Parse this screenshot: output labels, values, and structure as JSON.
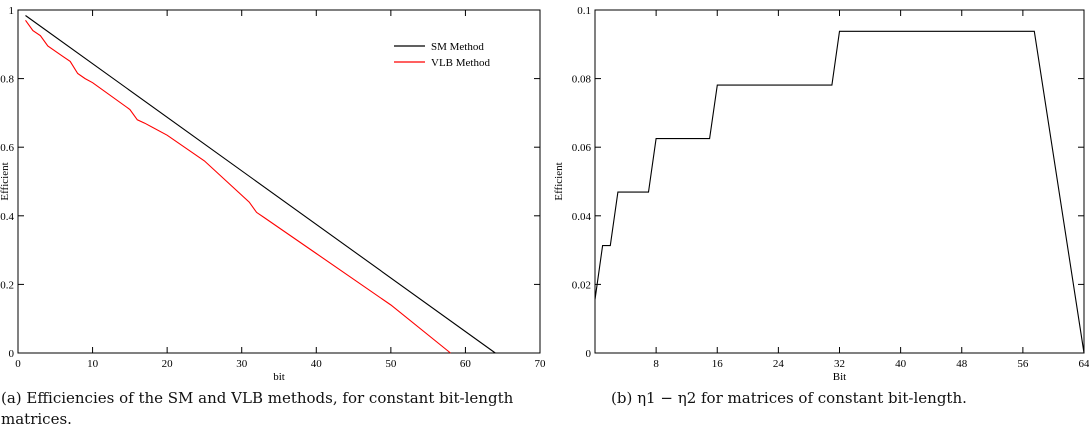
{
  "chart_data": [
    {
      "type": "line",
      "xlabel": "bit",
      "ylabel": "Efficient",
      "xlim": [
        0,
        70
      ],
      "ylim": [
        0,
        1
      ],
      "xticks": [
        0,
        10,
        20,
        30,
        40,
        50,
        60,
        70
      ],
      "yticks": [
        0,
        0.2,
        0.4,
        0.6,
        0.8,
        1
      ],
      "ytick_labels": [
        "0",
        "0.2",
        "0.4",
        "0.6",
        "0.8",
        "1"
      ],
      "grid": false,
      "legend_position": "top-right",
      "series": [
        {
          "name": "SM Method",
          "color": "#000000",
          "x": [
            1,
            64
          ],
          "y": [
            0.984,
            0
          ]
        },
        {
          "name": "VLB Method",
          "color": "#ff0000",
          "x": [
            1,
            2,
            3,
            4,
            5,
            6,
            7,
            8,
            9,
            10,
            15,
            16,
            17,
            20,
            25,
            31,
            32,
            33,
            40,
            50,
            58
          ],
          "y": [
            0.97,
            0.94,
            0.925,
            0.895,
            0.88,
            0.865,
            0.85,
            0.815,
            0.8,
            0.788,
            0.71,
            0.68,
            0.67,
            0.635,
            0.56,
            0.44,
            0.41,
            0.395,
            0.29,
            0.14,
            0
          ]
        }
      ]
    },
    {
      "type": "line",
      "xlabel": "Bit",
      "ylabel": "Efficient",
      "xlim": [
        0,
        64
      ],
      "ylim": [
        0,
        0.1
      ],
      "xticks": [
        8,
        16,
        24,
        32,
        40,
        48,
        56,
        64
      ],
      "yticks": [
        0,
        0.02,
        0.04,
        0.06,
        0.08,
        0.1
      ],
      "ytick_labels": [
        "0",
        "0.02",
        "0.04",
        "0.06",
        "0.08",
        "0.1"
      ],
      "grid": false,
      "series": [
        {
          "color": "#000000",
          "x": [
            0,
            1,
            2,
            3,
            4,
            7,
            8,
            15,
            16,
            31,
            32,
            57.5,
            64
          ],
          "y": [
            0.0156,
            0.0313,
            0.0313,
            0.0469,
            0.0469,
            0.0469,
            0.0625,
            0.0625,
            0.0781,
            0.0781,
            0.0938,
            0.0938,
            0
          ]
        }
      ]
    }
  ],
  "captions": {
    "a": "(a) Efficiencies of the SM and VLB methods, for constant bit-length matrices.",
    "b": "(b) η1 − η2 for matrices of constant bit-length."
  }
}
